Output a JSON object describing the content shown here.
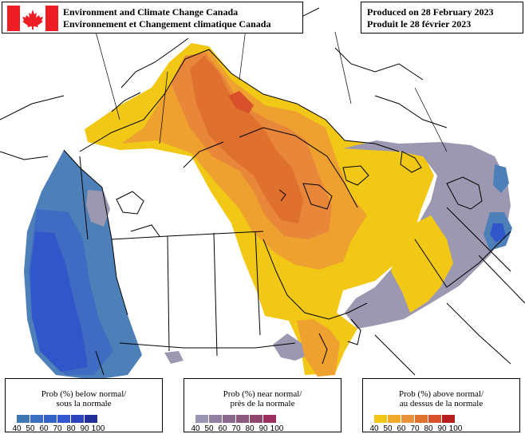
{
  "header": {
    "agency_en": "Environment and Climate Change Canada",
    "agency_fr": "Environnement et Changement climatique Canada",
    "produced_en": "Produced on 28 February 2023",
    "produced_fr": "Produit le 28 février 2023"
  },
  "legends": {
    "below": {
      "title_en": "Prob (%) below normal/",
      "title_fr": "sous la normale",
      "colors": [
        "#3f78b5",
        "#3b6fc0",
        "#3564c9",
        "#3456cf",
        "#2e44bf",
        "#202f9a"
      ],
      "ticks": [
        "40",
        "50",
        "60",
        "70",
        "80",
        "90",
        "100"
      ]
    },
    "near": {
      "title_en": "Prob (%) near normal/",
      "title_fr": "près de la normale",
      "colors": [
        "#9a95b0",
        "#8f819f",
        "#8a6a8c",
        "#8b5a7c",
        "#91476d",
        "#9d2f5e"
      ],
      "ticks": [
        "40",
        "50",
        "60",
        "70",
        "80",
        "90",
        "100"
      ]
    },
    "above": {
      "title_en": "Prob (%) above normal/",
      "title_fr": "au dessus de la normale",
      "colors": [
        "#f2c816",
        "#f0a92a",
        "#e8933b",
        "#e07230",
        "#d8512a",
        "#b41e1e"
      ],
      "ticks": [
        "40",
        "50",
        "60",
        "70",
        "80",
        "90",
        "100"
      ]
    }
  },
  "colors": {
    "above_40": "#f2c816",
    "above_50": "#efa12f",
    "above_60": "#e8873a",
    "above_70": "#e0702d",
    "near_40": "#9c98b2",
    "below_40": "#4d7fb8",
    "below_50": "#3f6cc2",
    "below_60": "#3156c9",
    "flag_red": "#ee1c25"
  }
}
